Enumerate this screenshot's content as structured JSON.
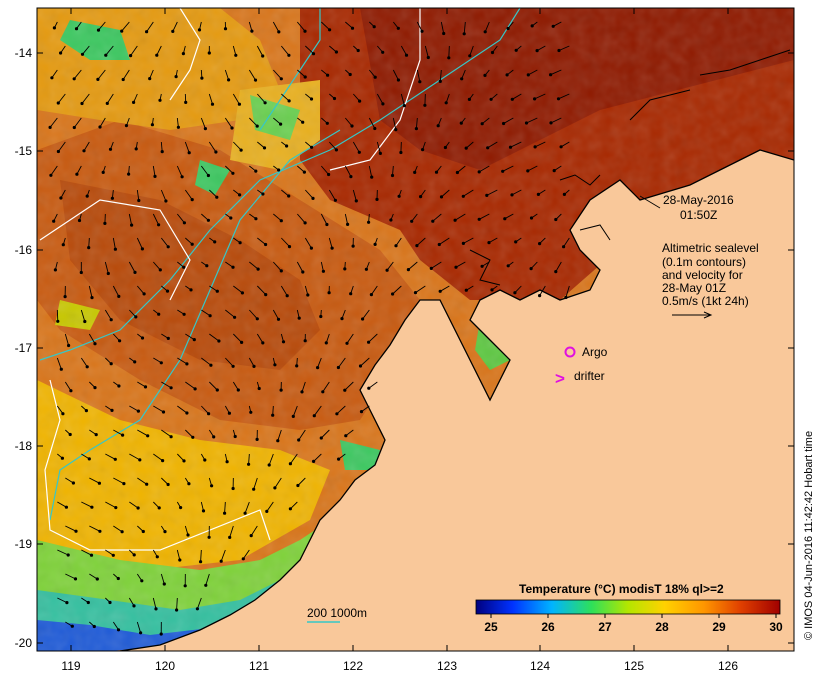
{
  "map": {
    "lon_ticks": [
      "119",
      "120",
      "121",
      "122",
      "123",
      "124",
      "125",
      "126"
    ],
    "lat_ticks": [
      "-14",
      "-15",
      "-16",
      "-17",
      "-18",
      "-19",
      "-20"
    ],
    "colors": {
      "land": "#f9c89a",
      "sea_warm": "#b02a00",
      "sea_mid": "#d9751a",
      "sea_cool": "#f0b400",
      "sea_green": "#43c84a",
      "sea_cold": "#1f5bd8",
      "contour_200": "#36c7c8",
      "contour_1000": "#ffffff",
      "vector": "#000000",
      "argo": "#e010e0"
    }
  },
  "annotation": {
    "date": "28-May-2016",
    "time": "01:50Z",
    "lines": [
      "Altimetric sealevel",
      "(0.1m contours)",
      "and velocity for",
      "28-May 01Z",
      "0.5m/s (1kt 24h)"
    ]
  },
  "markers": {
    "argo_label": "Argo",
    "drifter_symbol": ">",
    "drifter_label": "drifter"
  },
  "depth_legend": {
    "label": "200  1000m"
  },
  "colorbar": {
    "title": "Temperature (°C) modisT 18% ql>=2",
    "ticks": [
      "25",
      "26",
      "27",
      "28",
      "29",
      "30"
    ],
    "colors": [
      "#00007f",
      "#0032ff",
      "#00b4ff",
      "#2ee05a",
      "#b4e600",
      "#ffd200",
      "#ff9600",
      "#e04000",
      "#a00000"
    ]
  },
  "credit": "© IMOS 04-Jun-2016 11:42:42 Hobart time"
}
